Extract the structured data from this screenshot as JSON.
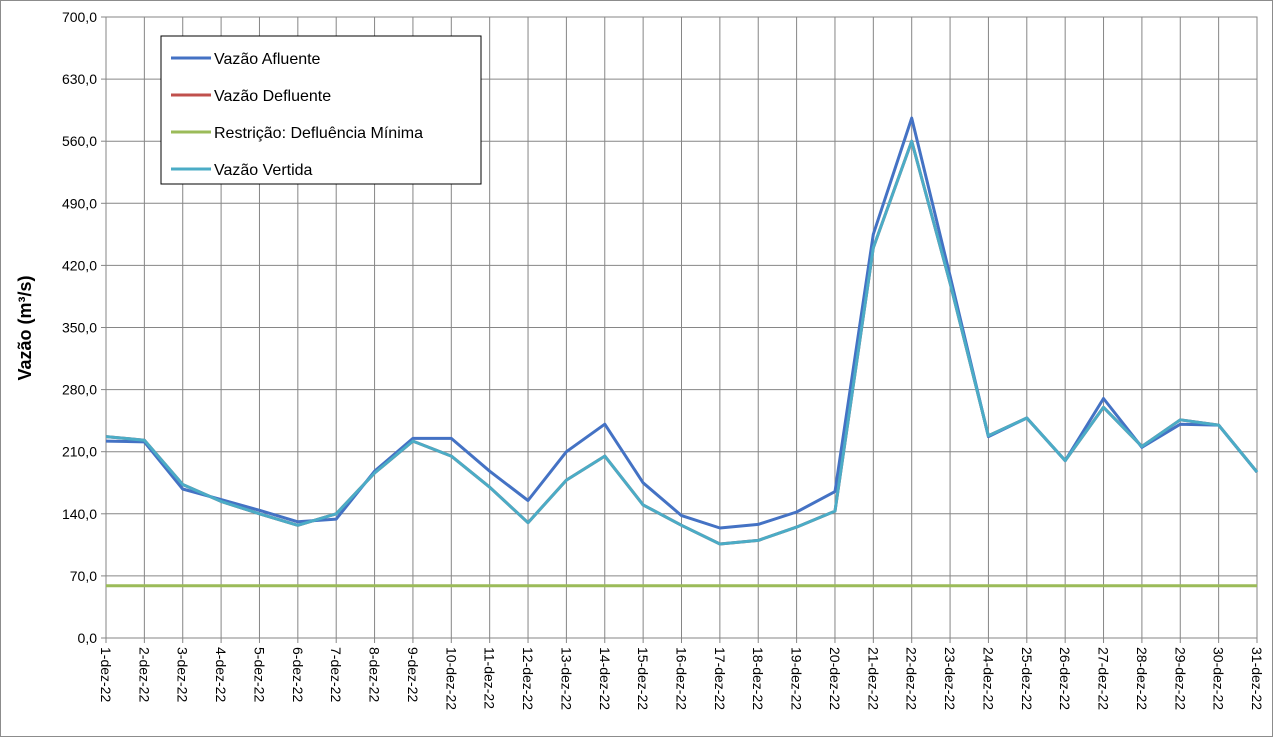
{
  "chart_data": {
    "type": "line",
    "title": "",
    "xlabel": "",
    "ylabel": "Vazão (m³/s)",
    "ylim": [
      0,
      700
    ],
    "yticks": [
      "0,0",
      "70,0",
      "140,0",
      "210,0",
      "280,0",
      "350,0",
      "420,0",
      "490,0",
      "560,0",
      "630,0",
      "700,0"
    ],
    "ytick_values": [
      0,
      70,
      140,
      210,
      280,
      350,
      420,
      490,
      560,
      630,
      700
    ],
    "grid": true,
    "legend_position": "top-left",
    "categories": [
      "1-dez-22",
      "2-dez-22",
      "3-dez-22",
      "4-dez-22",
      "5-dez-22",
      "6-dez-22",
      "7-dez-22",
      "8-dez-22",
      "9-dez-22",
      "10-dez-22",
      "11-dez-22",
      "12-dez-22",
      "13-dez-22",
      "14-dez-22",
      "15-dez-22",
      "16-dez-22",
      "17-dez-22",
      "18-dez-22",
      "19-dez-22",
      "20-dez-22",
      "21-dez-22",
      "22-dez-22",
      "23-dez-22",
      "24-dez-22",
      "25-dez-22",
      "26-dez-22",
      "27-dez-22",
      "28-dez-22",
      "29-dez-22",
      "30-dez-22",
      "31-dez-22"
    ],
    "series": [
      {
        "name": "Vazão Afluente",
        "color": "#4472c4",
        "values": [
          222,
          221,
          168,
          156,
          144,
          131,
          134,
          188,
          225,
          225,
          188,
          155,
          210,
          241,
          175,
          138,
          124,
          128,
          142,
          165,
          455,
          586,
          408,
          227,
          248,
          200,
          270,
          215,
          241,
          240,
          187
        ]
      },
      {
        "name": "Vazão Defluente",
        "color": "#c0504d",
        "values": [
          227,
          223,
          173,
          154,
          140,
          127,
          140,
          186,
          222,
          205,
          170,
          130,
          178,
          205,
          150,
          127,
          106,
          110,
          125,
          143,
          440,
          560,
          400,
          228,
          248,
          200,
          260,
          216,
          246,
          240,
          187
        ]
      },
      {
        "name": "Restrição: Defluência Mínima",
        "color": "#9bbb59",
        "values": [
          59,
          59,
          59,
          59,
          59,
          59,
          59,
          59,
          59,
          59,
          59,
          59,
          59,
          59,
          59,
          59,
          59,
          59,
          59,
          59,
          59,
          59,
          59,
          59,
          59,
          59,
          59,
          59,
          59,
          59,
          59
        ]
      },
      {
        "name": "Vazão Vertida",
        "color": "#4bacc6",
        "values": [
          227,
          223,
          173,
          154,
          140,
          127,
          140,
          186,
          222,
          205,
          170,
          130,
          178,
          205,
          150,
          127,
          106,
          110,
          125,
          143,
          440,
          560,
          400,
          228,
          248,
          200,
          260,
          216,
          246,
          240,
          187
        ]
      }
    ]
  }
}
